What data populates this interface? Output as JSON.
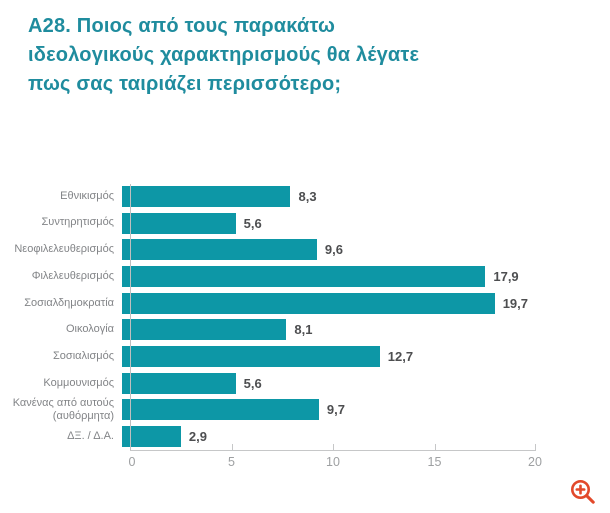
{
  "title": "Α28. Ποιος από τους παρακάτω\nιδεολογικούς χαρακτηρισμούς θα λέγατε\nπως σας ταιριάζει περισσότερο;",
  "chart_data": {
    "type": "bar",
    "orientation": "horizontal",
    "title": "Α28. Ποιος από τους παρακάτω ιδεολογικούς χαρακτηρισμούς θα λέγατε πως σας ταιριάζει περισσότερο;",
    "categories": [
      "Εθνικισμός",
      "Συντηρητισμός",
      "Νεοφιλελευθερισμός",
      "Φιλελευθερισμός",
      "Σοσιαλδημοκρατία",
      "Οικολογία",
      "Σοσιαλισμός",
      "Κομμουνισμός",
      "Κανένας από αυτούς\n(αυθόρμητα)",
      "ΔΞ. / Δ.Α."
    ],
    "values": [
      8.3,
      5.6,
      9.6,
      17.9,
      19.7,
      8.1,
      12.7,
      5.6,
      9.7,
      2.9
    ],
    "value_labels": [
      "8,3",
      "5,6",
      "9,6",
      "17,9",
      "19,7",
      "8,1",
      "12,7",
      "5,6",
      "9,7",
      "2,9"
    ],
    "xlabel": "",
    "ylabel": "",
    "xlim": [
      0,
      20
    ],
    "xticks": [
      0,
      5,
      10,
      15,
      20
    ],
    "xtick_labels": [
      "0",
      "5",
      "10",
      "15",
      "20"
    ],
    "grid": false,
    "legend": "none",
    "bar_color": "#0D97A6",
    "title_color": "#1F8C9E",
    "axis_color": "#C6C7C8",
    "value_label_color": "#4D4E50",
    "category_label_color": "#828487"
  },
  "icons": {
    "zoom_in": {
      "name": "zoom-in-icon",
      "color": "#E2492B"
    }
  }
}
